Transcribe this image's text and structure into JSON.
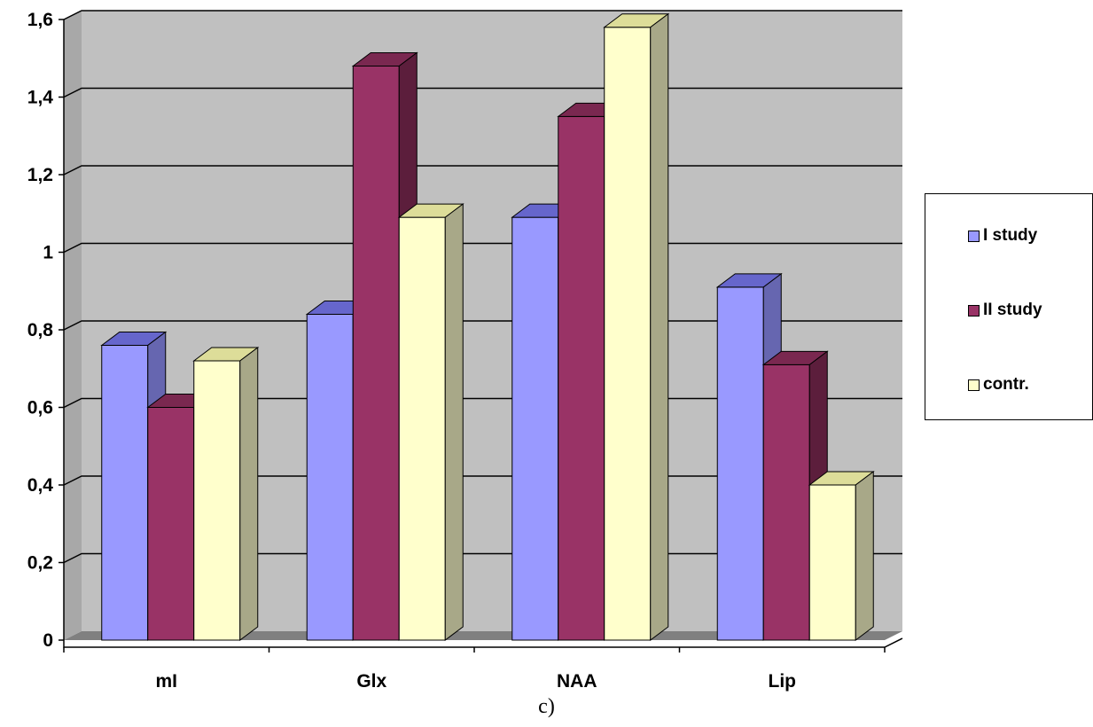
{
  "chart_data": {
    "type": "bar",
    "categories": [
      "mI",
      "Glx",
      "NAA",
      "Lip"
    ],
    "series": [
      {
        "name": "I study",
        "values": [
          0.76,
          0.84,
          1.09,
          0.91
        ]
      },
      {
        "name": "II study",
        "values": [
          0.6,
          1.48,
          1.35,
          0.71
        ]
      },
      {
        "name": "contr.",
        "values": [
          0.72,
          1.09,
          1.58,
          0.4
        ]
      }
    ],
    "y_ticks": [
      "0",
      "0,2",
      "0,4",
      "0,6",
      "0,8",
      "1",
      "1,2",
      "1,4",
      "1,6"
    ],
    "ylim": [
      0,
      1.6
    ],
    "grid": true,
    "legend_position": "right",
    "colors": {
      "I study": "#9999ff",
      "II study": "#993366",
      "contr.": "#ffffcc",
      "plot_wall": "#c0c0c0"
    }
  },
  "caption": "c)"
}
